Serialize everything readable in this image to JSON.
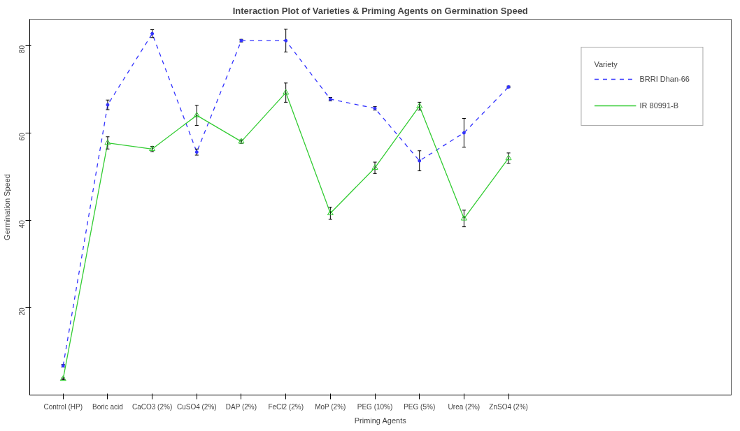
{
  "chart_data": {
    "type": "line",
    "title": "Interaction Plot of Varieties & Priming Agents on Germination Speed",
    "xlabel": "Priming Agents",
    "ylabel": "Germination Speed",
    "legend_title": "Variety",
    "legend": "top right",
    "grid": false,
    "categories": [
      "Control (HP)",
      "Boric acid",
      "CaCO3 (2%)",
      "CuSO4 (2%)",
      "DAP (2%)",
      "FeCl2 (2%)",
      "MoP (2%)",
      "PEG (10%)",
      "PEG (5%)",
      "Urea (2%)",
      "ZnSO4 (2%)"
    ],
    "ylim": [
      0,
      86
    ],
    "yticks": [
      20,
      40,
      60,
      80
    ],
    "series": [
      {
        "name": "BRRI Dhan-66",
        "color": "#3333ff",
        "marker": "circle",
        "line_style": "dashed",
        "values": [
          6.7,
          66.4,
          82.7,
          55.6,
          81.1,
          81.1,
          67.7,
          65.6,
          53.6,
          60.0,
          70.5
        ],
        "errors": [
          0.3,
          1.1,
          0.9,
          0.7,
          0.3,
          2.6,
          0.4,
          0.4,
          2.3,
          3.3,
          0.2
        ]
      },
      {
        "name": "IR 80991-B",
        "color": "#33cc33",
        "marker": "triangle",
        "line_style": "solid",
        "values": [
          3.7,
          57.7,
          56.3,
          64.0,
          58.0,
          69.2,
          41.6,
          52.0,
          66.1,
          40.4,
          54.2
        ],
        "errors": [
          0.2,
          1.4,
          0.6,
          2.3,
          0.4,
          2.2,
          1.4,
          1.3,
          0.9,
          1.9,
          1.2
        ]
      }
    ]
  }
}
